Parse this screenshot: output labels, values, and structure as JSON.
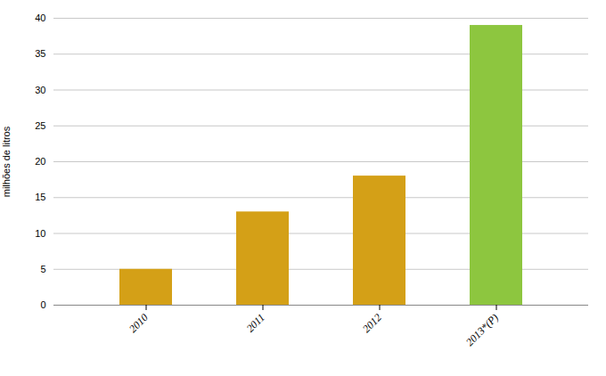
{
  "chart_data": {
    "type": "bar",
    "categories": [
      "2010",
      "2011",
      "2012",
      "2013*(P)"
    ],
    "values": [
      5,
      13,
      18,
      39
    ],
    "colors": [
      "#D4A017",
      "#D4A017",
      "#D4A017",
      "#8DC63F"
    ],
    "ylabel": "milhões de litros",
    "ylim": [
      0,
      40
    ],
    "yticks": [
      0,
      5,
      10,
      15,
      20,
      25,
      30,
      35,
      40
    ],
    "grid": true
  }
}
